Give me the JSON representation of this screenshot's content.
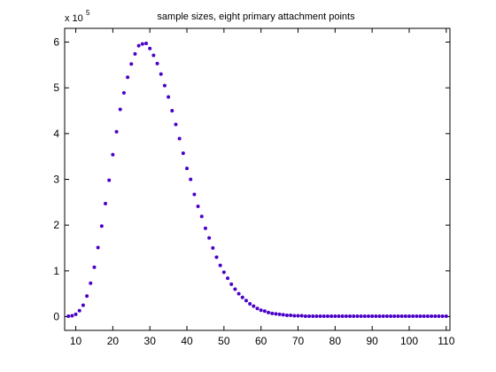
{
  "colors": {
    "background": "#ffffff",
    "axes": "#000000",
    "markers": "#4b00c8"
  },
  "chart_data": {
    "type": "scatter",
    "title": "sample sizes, eight primary attachment points",
    "xlabel": "",
    "ylabel": "",
    "y_exponent_label": "x 10",
    "y_exponent": "5",
    "xlim": [
      7,
      111
    ],
    "ylim": [
      -0.3,
      6.3
    ],
    "xticks": [
      10,
      20,
      30,
      40,
      50,
      60,
      70,
      80,
      90,
      100,
      110
    ],
    "yticks": [
      0,
      1,
      2,
      3,
      4,
      5,
      6
    ],
    "grid": false,
    "series": [
      {
        "x": [
          8,
          9,
          10,
          11,
          12,
          13,
          14,
          15,
          16,
          17,
          18,
          19,
          20,
          21,
          22,
          23,
          24,
          25,
          26,
          27,
          28,
          29,
          30,
          31,
          32,
          33,
          34,
          35,
          36,
          37,
          38,
          39,
          40,
          41,
          42,
          43,
          44,
          45,
          46,
          47,
          48,
          49,
          50,
          51,
          52,
          53,
          54,
          55,
          56,
          57,
          58,
          59,
          60,
          61,
          62,
          63,
          64,
          65,
          66,
          67,
          68,
          69,
          70,
          71,
          72,
          73,
          74,
          75,
          76,
          77,
          78,
          79,
          80,
          81,
          82,
          83,
          84,
          85,
          86,
          87,
          88,
          89,
          90,
          91,
          92,
          93,
          94,
          95,
          96,
          97,
          98,
          99,
          100,
          101,
          102,
          103,
          104,
          105,
          106,
          107,
          108,
          109,
          110
        ],
        "values": [
          0.01,
          0.02,
          0.05,
          0.13,
          0.25,
          0.45,
          0.73,
          1.08,
          1.51,
          1.98,
          2.47,
          2.98,
          3.54,
          4.04,
          4.53,
          4.89,
          5.23,
          5.52,
          5.74,
          5.92,
          5.96,
          5.97,
          5.86,
          5.71,
          5.53,
          5.3,
          5.05,
          4.8,
          4.5,
          4.2,
          3.89,
          3.57,
          3.24,
          3.0,
          2.67,
          2.41,
          2.19,
          1.93,
          1.72,
          1.5,
          1.3,
          1.12,
          0.97,
          0.84,
          0.71,
          0.6,
          0.5,
          0.42,
          0.35,
          0.28,
          0.23,
          0.18,
          0.14,
          0.12,
          0.09,
          0.07,
          0.06,
          0.05,
          0.04,
          0.03,
          0.03,
          0.02,
          0.02,
          0.02,
          0.01,
          0.01,
          0.01,
          0.01,
          0.01,
          0.01,
          0.01,
          0.01,
          0.01,
          0.01,
          0.01,
          0.01,
          0.01,
          0.01,
          0.01,
          0.01,
          0.01,
          0.01,
          0.01,
          0.01,
          0.01,
          0.01,
          0.01,
          0.01,
          0.01,
          0.01,
          0.01,
          0.01,
          0.01,
          0.01,
          0.01,
          0.01,
          0.01,
          0.01,
          0.01,
          0.01,
          0.01,
          0.01,
          0.01
        ]
      }
    ]
  }
}
